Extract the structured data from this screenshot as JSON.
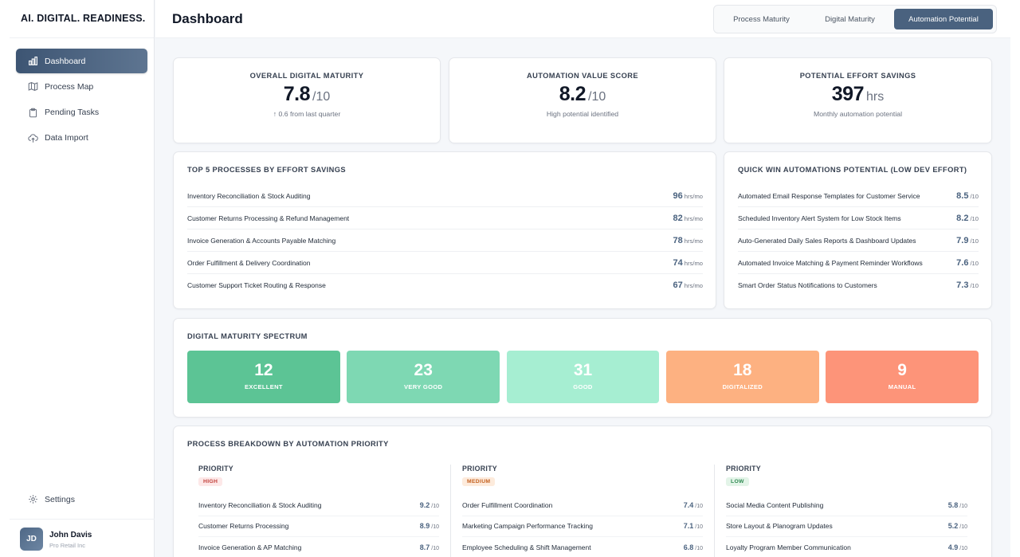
{
  "brand": "AI. DIGITAL. READINESS.",
  "page_title": "Dashboard",
  "nav": [
    {
      "label": "Dashboard",
      "icon": "bar-chart-icon",
      "active": true
    },
    {
      "label": "Process Map",
      "icon": "map-icon",
      "active": false
    },
    {
      "label": "Pending Tasks",
      "icon": "clipboard-icon",
      "active": false
    },
    {
      "label": "Data Import",
      "icon": "upload-cloud-icon",
      "active": false
    }
  ],
  "settings_label": "Settings",
  "user": {
    "initials": "JD",
    "name": "John Davis",
    "company": "Pro Retail Inc"
  },
  "tabs": [
    {
      "label": "Process Maturity",
      "active": false
    },
    {
      "label": "Digital Maturity",
      "active": false
    },
    {
      "label": "Automation Potential",
      "active": true
    }
  ],
  "kpis": [
    {
      "label": "OVERALL DIGITAL MATURITY",
      "value": "7.8",
      "unit": "/10",
      "sub": "↑ 0.6 from last quarter"
    },
    {
      "label": "AUTOMATION VALUE SCORE",
      "value": "8.2",
      "unit": "/10",
      "sub": "High potential identified"
    },
    {
      "label": "POTENTIAL EFFORT SAVINGS",
      "value": "397",
      "unit": "hrs",
      "sub": "Monthly automation potential"
    }
  ],
  "top_processes": {
    "title": "TOP 5 PROCESSES BY EFFORT SAVINGS",
    "unit": "hrs/mo",
    "rows": [
      {
        "name": "Inventory Reconciliation & Stock Auditing",
        "value": "96"
      },
      {
        "name": "Customer Returns Processing & Refund Management",
        "value": "82"
      },
      {
        "name": "Invoice Generation & Accounts Payable Matching",
        "value": "78"
      },
      {
        "name": "Order Fulfillment & Delivery Coordination",
        "value": "74"
      },
      {
        "name": "Customer Support Ticket Routing & Response",
        "value": "67"
      }
    ]
  },
  "quick_wins": {
    "title": "QUICK WIN AUTOMATIONS POTENTIAL (LOW DEV EFFORT)",
    "unit": "/10",
    "rows": [
      {
        "name": "Automated Email Response Templates for Customer Service",
        "value": "8.5"
      },
      {
        "name": "Scheduled Inventory Alert System for Low Stock Items",
        "value": "8.2"
      },
      {
        "name": "Auto-Generated Daily Sales Reports & Dashboard Updates",
        "value": "7.9"
      },
      {
        "name": "Automated Invoice Matching & Payment Reminder Workflows",
        "value": "7.6"
      },
      {
        "name": "Smart Order Status Notifications to Customers",
        "value": "7.3"
      }
    ]
  },
  "spectrum": {
    "title": "DIGITAL MATURITY SPECTRUM",
    "items": [
      {
        "count": "12",
        "label": "EXCELLENT",
        "color": "#5cc495"
      },
      {
        "count": "23",
        "label": "VERY GOOD",
        "color": "#7ed8b3"
      },
      {
        "count": "31",
        "label": "GOOD",
        "color": "#a6eed2"
      },
      {
        "count": "18",
        "label": "DIGITALIZED",
        "color": "#fdb181"
      },
      {
        "count": "9",
        "label": "MANUAL",
        "color": "#fd9479"
      }
    ]
  },
  "breakdown": {
    "title": "PROCESS BREAKDOWN BY AUTOMATION PRIORITY",
    "unit": "/10",
    "columns": [
      {
        "title": "PRIORITY",
        "badge": "HIGH",
        "badge_bg": "#fde8e8",
        "badge_fg": "#c2413b",
        "rows": [
          {
            "name": "Inventory Reconciliation & Stock Auditing",
            "value": "9.2"
          },
          {
            "name": "Customer Returns Processing",
            "value": "8.9"
          },
          {
            "name": "Invoice Generation & AP Matching",
            "value": "8.7"
          }
        ]
      },
      {
        "title": "PRIORITY",
        "badge": "MEDIUM",
        "badge_bg": "#fdebdc",
        "badge_fg": "#c4601f",
        "rows": [
          {
            "name": "Order Fulfillment Coordination",
            "value": "7.4"
          },
          {
            "name": "Marketing Campaign Performance Tracking",
            "value": "7.1"
          },
          {
            "name": "Employee Scheduling & Shift Management",
            "value": "6.8"
          }
        ]
      },
      {
        "title": "PRIORITY",
        "badge": "LOW",
        "badge_bg": "#e3f4e8",
        "badge_fg": "#2f8a52",
        "rows": [
          {
            "name": "Social Media Content Publishing",
            "value": "5.8"
          },
          {
            "name": "Store Layout & Planogram Updates",
            "value": "5.2"
          },
          {
            "name": "Loyalty Program Member Communication",
            "value": "4.9"
          }
        ]
      }
    ]
  }
}
